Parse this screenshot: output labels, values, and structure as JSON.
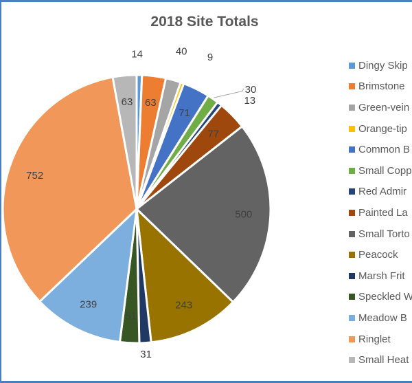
{
  "chart_data": {
    "type": "pie",
    "title": "2018 Site Totals",
    "legend_position": "right",
    "series": [
      {
        "name": "Dingy Skipper",
        "legend_text": "Dingy Skip",
        "value": 14,
        "color": "#5b9bd5"
      },
      {
        "name": "Brimstone",
        "legend_text": "Brimstone",
        "value": 63,
        "color": "#ed7d31"
      },
      {
        "name": "Green-veined White",
        "legend_text": "Green-vein",
        "value": 40,
        "color": "#a5a5a5"
      },
      {
        "name": "Orange-tip",
        "legend_text": "Orange-tip",
        "value": 9,
        "color": "#ffc000"
      },
      {
        "name": "Common Blue",
        "legend_text": "Common B",
        "value": 71,
        "color": "#4472c4"
      },
      {
        "name": "Small Copper",
        "legend_text": "Small Copp",
        "value": 30,
        "color": "#70ad47"
      },
      {
        "name": "Red Admiral",
        "legend_text": "Red Admir",
        "value": 13,
        "color": "#264478"
      },
      {
        "name": "Painted Lady",
        "legend_text": "Painted La",
        "value": 77,
        "color": "#9e480e"
      },
      {
        "name": "Small Tortoiseshell",
        "legend_text": "Small Torto",
        "value": 500,
        "color": "#636363"
      },
      {
        "name": "Peacock",
        "legend_text": "Peacock",
        "value": 243,
        "color": "#997300"
      },
      {
        "name": "Marsh Fritillary",
        "legend_text": "Marsh Frit",
        "value": 31,
        "color": "#1f3864"
      },
      {
        "name": "Speckled Wood",
        "legend_text": "Speckled W",
        "value": 51,
        "color": "#375623"
      },
      {
        "name": "Meadow Brown",
        "legend_text": "Meadow B",
        "value": 239,
        "color": "#7cafdd"
      },
      {
        "name": "Ringlet",
        "legend_text": "Ringlet",
        "value": 752,
        "color": "#f1975a"
      },
      {
        "name": "Small Heath",
        "legend_text": "Small Heat",
        "value": 63,
        "color": "#b7b7b7"
      }
    ]
  }
}
